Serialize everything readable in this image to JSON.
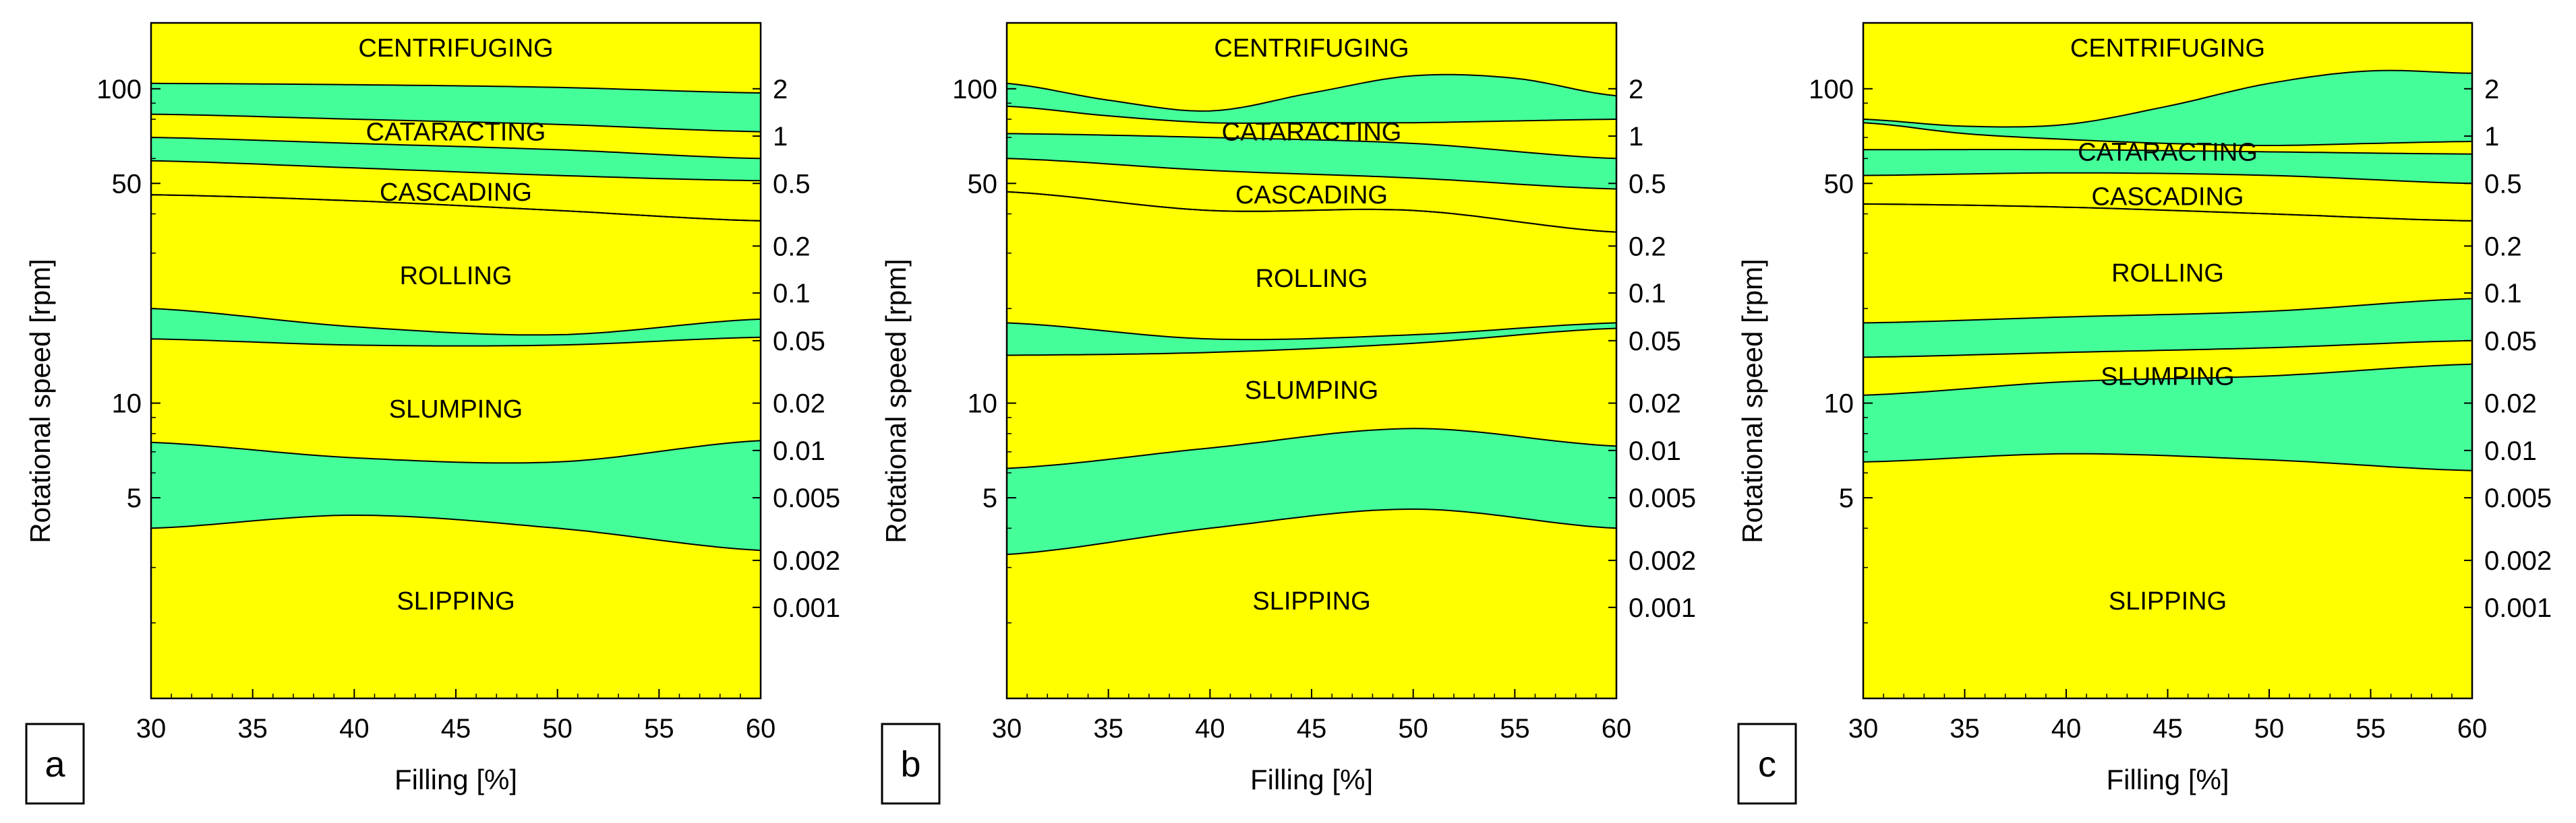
{
  "figure": {
    "colors": {
      "regime_fill": "#ffff00",
      "transition_fill": "#44ff99",
      "stroke": "#000000"
    },
    "xlabel": "Filling [%]",
    "ylabel": "Rotational speed [rpm]"
  },
  "chart_data": [
    {
      "type": "area",
      "panel": "a",
      "xlabel": "Filling [%]",
      "ylabel": "Rotational speed [rpm]",
      "x_ticks": [
        30,
        35,
        40,
        45,
        50,
        55,
        60
      ],
      "xlim": [
        30,
        60
      ],
      "y_scale": "log",
      "ylim": [
        1.15,
        162
      ],
      "y_ticks": [
        5,
        10,
        50,
        100
      ],
      "secondary_axis_ticks": [
        {
          "label": "2",
          "rpm": 100
        },
        {
          "label": "1",
          "rpm": 70.7
        },
        {
          "label": "0.5",
          "rpm": 50
        },
        {
          "label": "0.2",
          "rpm": 31.6
        },
        {
          "label": "0.1",
          "rpm": 22.4
        },
        {
          "label": "0.05",
          "rpm": 15.8
        },
        {
          "label": "0.02",
          "rpm": 10
        },
        {
          "label": "0.01",
          "rpm": 7.07
        },
        {
          "label": "0.005",
          "rpm": 5
        },
        {
          "label": "0.002",
          "rpm": 3.16
        },
        {
          "label": "0.001",
          "rpm": 2.24
        }
      ],
      "bands": [
        {
          "name": "centrifuging-cataracting",
          "x": [
            30,
            40,
            50,
            60
          ],
          "upper": [
            104,
            103,
            101,
            97
          ],
          "lower": [
            83,
            80,
            77,
            73
          ]
        },
        {
          "name": "cataracting-cascading",
          "x": [
            30,
            40,
            50,
            60
          ],
          "upper": [
            70,
            67,
            64,
            60
          ],
          "lower": [
            59,
            56,
            53,
            51
          ]
        },
        {
          "name": "cascading-rolling",
          "x": [
            30,
            40,
            50,
            60
          ],
          "upper": [
            46,
            44,
            41,
            38
          ],
          "lower": [
            46,
            44,
            41,
            38
          ]
        },
        {
          "name": "rolling-slumping",
          "x": [
            30,
            40,
            50,
            60
          ],
          "upper": [
            20,
            17.5,
            16.5,
            18.5
          ],
          "lower": [
            16,
            15.3,
            15.3,
            16.2
          ]
        },
        {
          "name": "slumping-slipping",
          "x": [
            30,
            40,
            50,
            60
          ],
          "upper": [
            7.5,
            6.7,
            6.5,
            7.6
          ],
          "lower": [
            4,
            4.4,
            4,
            3.4
          ]
        }
      ],
      "regime_labels": [
        {
          "text": "CENTRIFUGING",
          "x": 45,
          "rpm": 135
        },
        {
          "text": "CATARACTING",
          "x": 45,
          "rpm": 73
        },
        {
          "text": "CASCADING",
          "x": 45,
          "rpm": 47
        },
        {
          "text": "ROLLING",
          "x": 45,
          "rpm": 25.5
        },
        {
          "text": "SLUMPING",
          "x": 45,
          "rpm": 9.6
        },
        {
          "text": "SLIPPING",
          "x": 45,
          "rpm": 2.35
        }
      ]
    },
    {
      "type": "area",
      "panel": "b",
      "xlabel": "Filling [%]",
      "ylabel": "Rotational speed [rpm]",
      "x_ticks": [
        30,
        35,
        40,
        45,
        50,
        55,
        60
      ],
      "xlim": [
        30,
        60
      ],
      "y_scale": "log",
      "ylim": [
        1.15,
        162
      ],
      "y_ticks": [
        5,
        10,
        50,
        100
      ],
      "secondary_axis_ticks": [
        {
          "label": "2",
          "rpm": 100
        },
        {
          "label": "1",
          "rpm": 70.7
        },
        {
          "label": "0.5",
          "rpm": 50
        },
        {
          "label": "0.2",
          "rpm": 31.6
        },
        {
          "label": "0.1",
          "rpm": 22.4
        },
        {
          "label": "0.05",
          "rpm": 15.8
        },
        {
          "label": "0.02",
          "rpm": 10
        },
        {
          "label": "0.01",
          "rpm": 7.07
        },
        {
          "label": "0.005",
          "rpm": 5
        },
        {
          "label": "0.002",
          "rpm": 3.16
        },
        {
          "label": "0.001",
          "rpm": 2.24
        }
      ],
      "bands": [
        {
          "name": "centrifuging-cataracting",
          "x": [
            30,
            35,
            40,
            45,
            50,
            55,
            60
          ],
          "upper": [
            104,
            92,
            85,
            97,
            110,
            108,
            95
          ],
          "lower": [
            88,
            82,
            78,
            78,
            78,
            79,
            80
          ]
        },
        {
          "name": "cataracting-cascading",
          "x": [
            30,
            40,
            50,
            60
          ],
          "upper": [
            72,
            70,
            67,
            60
          ],
          "lower": [
            60,
            55,
            52,
            48
          ]
        },
        {
          "name": "cascading-rolling",
          "x": [
            30,
            40,
            50,
            60
          ],
          "upper": [
            47,
            41,
            41,
            35
          ],
          "lower": [
            47,
            41,
            41,
            35
          ]
        },
        {
          "name": "rolling-slumping",
          "x": [
            30,
            40,
            50,
            60
          ],
          "upper": [
            18,
            16,
            16.5,
            18
          ],
          "lower": [
            14.2,
            14.5,
            15.5,
            17.3
          ]
        },
        {
          "name": "slumping-slipping",
          "x": [
            30,
            40,
            50,
            60
          ],
          "upper": [
            6.2,
            7.2,
            8.3,
            7.3
          ],
          "lower": [
            3.3,
            4,
            4.6,
            4
          ]
        }
      ],
      "regime_labels": [
        {
          "text": "CENTRIFUGING",
          "x": 45,
          "rpm": 135
        },
        {
          "text": "CATARACTING",
          "x": 45,
          "rpm": 73
        },
        {
          "text": "CASCADING",
          "x": 45,
          "rpm": 46
        },
        {
          "text": "ROLLING",
          "x": 45,
          "rpm": 25
        },
        {
          "text": "SLUMPING",
          "x": 45,
          "rpm": 11
        },
        {
          "text": "SLIPPING",
          "x": 45,
          "rpm": 2.35
        }
      ]
    },
    {
      "type": "area",
      "panel": "c",
      "xlabel": "Filling [%]",
      "ylabel": "Rotational speed [rpm]",
      "x_ticks": [
        30,
        35,
        40,
        45,
        50,
        55,
        60
      ],
      "xlim": [
        30,
        60
      ],
      "y_scale": "log",
      "ylim": [
        1.15,
        162
      ],
      "y_ticks": [
        5,
        10,
        50,
        100
      ],
      "secondary_axis_ticks": [
        {
          "label": "2",
          "rpm": 100
        },
        {
          "label": "1",
          "rpm": 70.7
        },
        {
          "label": "0.5",
          "rpm": 50
        },
        {
          "label": "0.2",
          "rpm": 31.6
        },
        {
          "label": "0.1",
          "rpm": 22.4
        },
        {
          "label": "0.05",
          "rpm": 15.8
        },
        {
          "label": "0.02",
          "rpm": 10
        },
        {
          "label": "0.01",
          "rpm": 7.07
        },
        {
          "label": "0.005",
          "rpm": 5
        },
        {
          "label": "0.002",
          "rpm": 3.16
        },
        {
          "label": "0.001",
          "rpm": 2.24
        }
      ],
      "bands": [
        {
          "name": "centrifuging-cataracting",
          "x": [
            30,
            35,
            40,
            45,
            50,
            55,
            60
          ],
          "upper": [
            80,
            76,
            77,
            88,
            104,
            114,
            112
          ],
          "lower": [
            78,
            72,
            69,
            67,
            66,
            67,
            68
          ]
        },
        {
          "name": "cataracting-cascading",
          "x": [
            30,
            40,
            50,
            60
          ],
          "upper": [
            64,
            64,
            63,
            62
          ],
          "lower": [
            53,
            54,
            53,
            50
          ]
        },
        {
          "name": "cascading-rolling",
          "x": [
            30,
            40,
            50,
            60
          ],
          "upper": [
            43,
            42,
            40,
            38
          ],
          "lower": [
            43,
            42,
            40,
            38
          ]
        },
        {
          "name": "rolling-slumping",
          "x": [
            30,
            40,
            50,
            60
          ],
          "upper": [
            18,
            18.8,
            19.6,
            21.5
          ],
          "lower": [
            14,
            14.5,
            15,
            15.8
          ]
        },
        {
          "name": "slumping-slipping",
          "x": [
            30,
            40,
            50,
            60
          ],
          "upper": [
            10.6,
            11.7,
            12.2,
            13.3
          ],
          "lower": [
            6.5,
            6.9,
            6.6,
            6.1
          ]
        }
      ],
      "regime_labels": [
        {
          "text": "CENTRIFUGING",
          "x": 45,
          "rpm": 135
        },
        {
          "text": "CATARACTING",
          "x": 45,
          "rpm": 63
        },
        {
          "text": "CASCADING",
          "x": 45,
          "rpm": 45.5
        },
        {
          "text": "ROLLING",
          "x": 45,
          "rpm": 26
        },
        {
          "text": "SLUMPING",
          "x": 45,
          "rpm": 12.2
        },
        {
          "text": "SLIPPING",
          "x": 45,
          "rpm": 2.35
        }
      ]
    }
  ]
}
